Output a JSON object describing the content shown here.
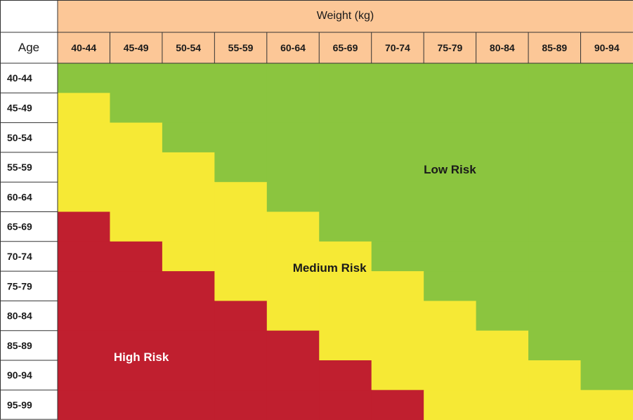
{
  "chart_data": {
    "type": "heatmap",
    "corner_label": "",
    "x_title": "Weight (kg)",
    "y_title": "Age",
    "x_categories": [
      "40-44",
      "45-49",
      "50-54",
      "55-59",
      "60-64",
      "65-69",
      "70-74",
      "75-79",
      "80-84",
      "85-89",
      "90-94"
    ],
    "y_categories": [
      "40-44",
      "45-49",
      "50-54",
      "55-59",
      "60-64",
      "65-69",
      "70-74",
      "75-79",
      "80-84",
      "85-89",
      "90-94",
      "95-99"
    ],
    "levels": [
      "low",
      "medium",
      "high"
    ],
    "level_labels": {
      "low": "Low Risk",
      "medium": "Medium Risk",
      "high": "High Risk"
    },
    "colors": {
      "low": "#8bc53f",
      "medium": "#f6e935",
      "high": "#c01f2f",
      "header_bg": "#fcc797",
      "header_border": "#333333"
    },
    "risk_matrix": [
      [
        0,
        0,
        0,
        0,
        0,
        0,
        0,
        0,
        0,
        0,
        0
      ],
      [
        1,
        0,
        0,
        0,
        0,
        0,
        0,
        0,
        0,
        0,
        0
      ],
      [
        1,
        1,
        0,
        0,
        0,
        0,
        0,
        0,
        0,
        0,
        0
      ],
      [
        1,
        1,
        1,
        0,
        0,
        0,
        0,
        0,
        0,
        0,
        0
      ],
      [
        1,
        1,
        1,
        1,
        0,
        0,
        0,
        0,
        0,
        0,
        0
      ],
      [
        2,
        1,
        1,
        1,
        1,
        0,
        0,
        0,
        0,
        0,
        0
      ],
      [
        2,
        2,
        1,
        1,
        1,
        1,
        0,
        0,
        0,
        0,
        0
      ],
      [
        2,
        2,
        2,
        1,
        1,
        1,
        1,
        0,
        0,
        0,
        0
      ],
      [
        2,
        2,
        2,
        2,
        1,
        1,
        1,
        1,
        0,
        0,
        0
      ],
      [
        2,
        2,
        2,
        2,
        2,
        1,
        1,
        1,
        1,
        0,
        0
      ],
      [
        2,
        2,
        2,
        2,
        2,
        2,
        1,
        1,
        1,
        1,
        0
      ],
      [
        2,
        2,
        2,
        2,
        2,
        2,
        2,
        1,
        1,
        1,
        1
      ]
    ]
  }
}
